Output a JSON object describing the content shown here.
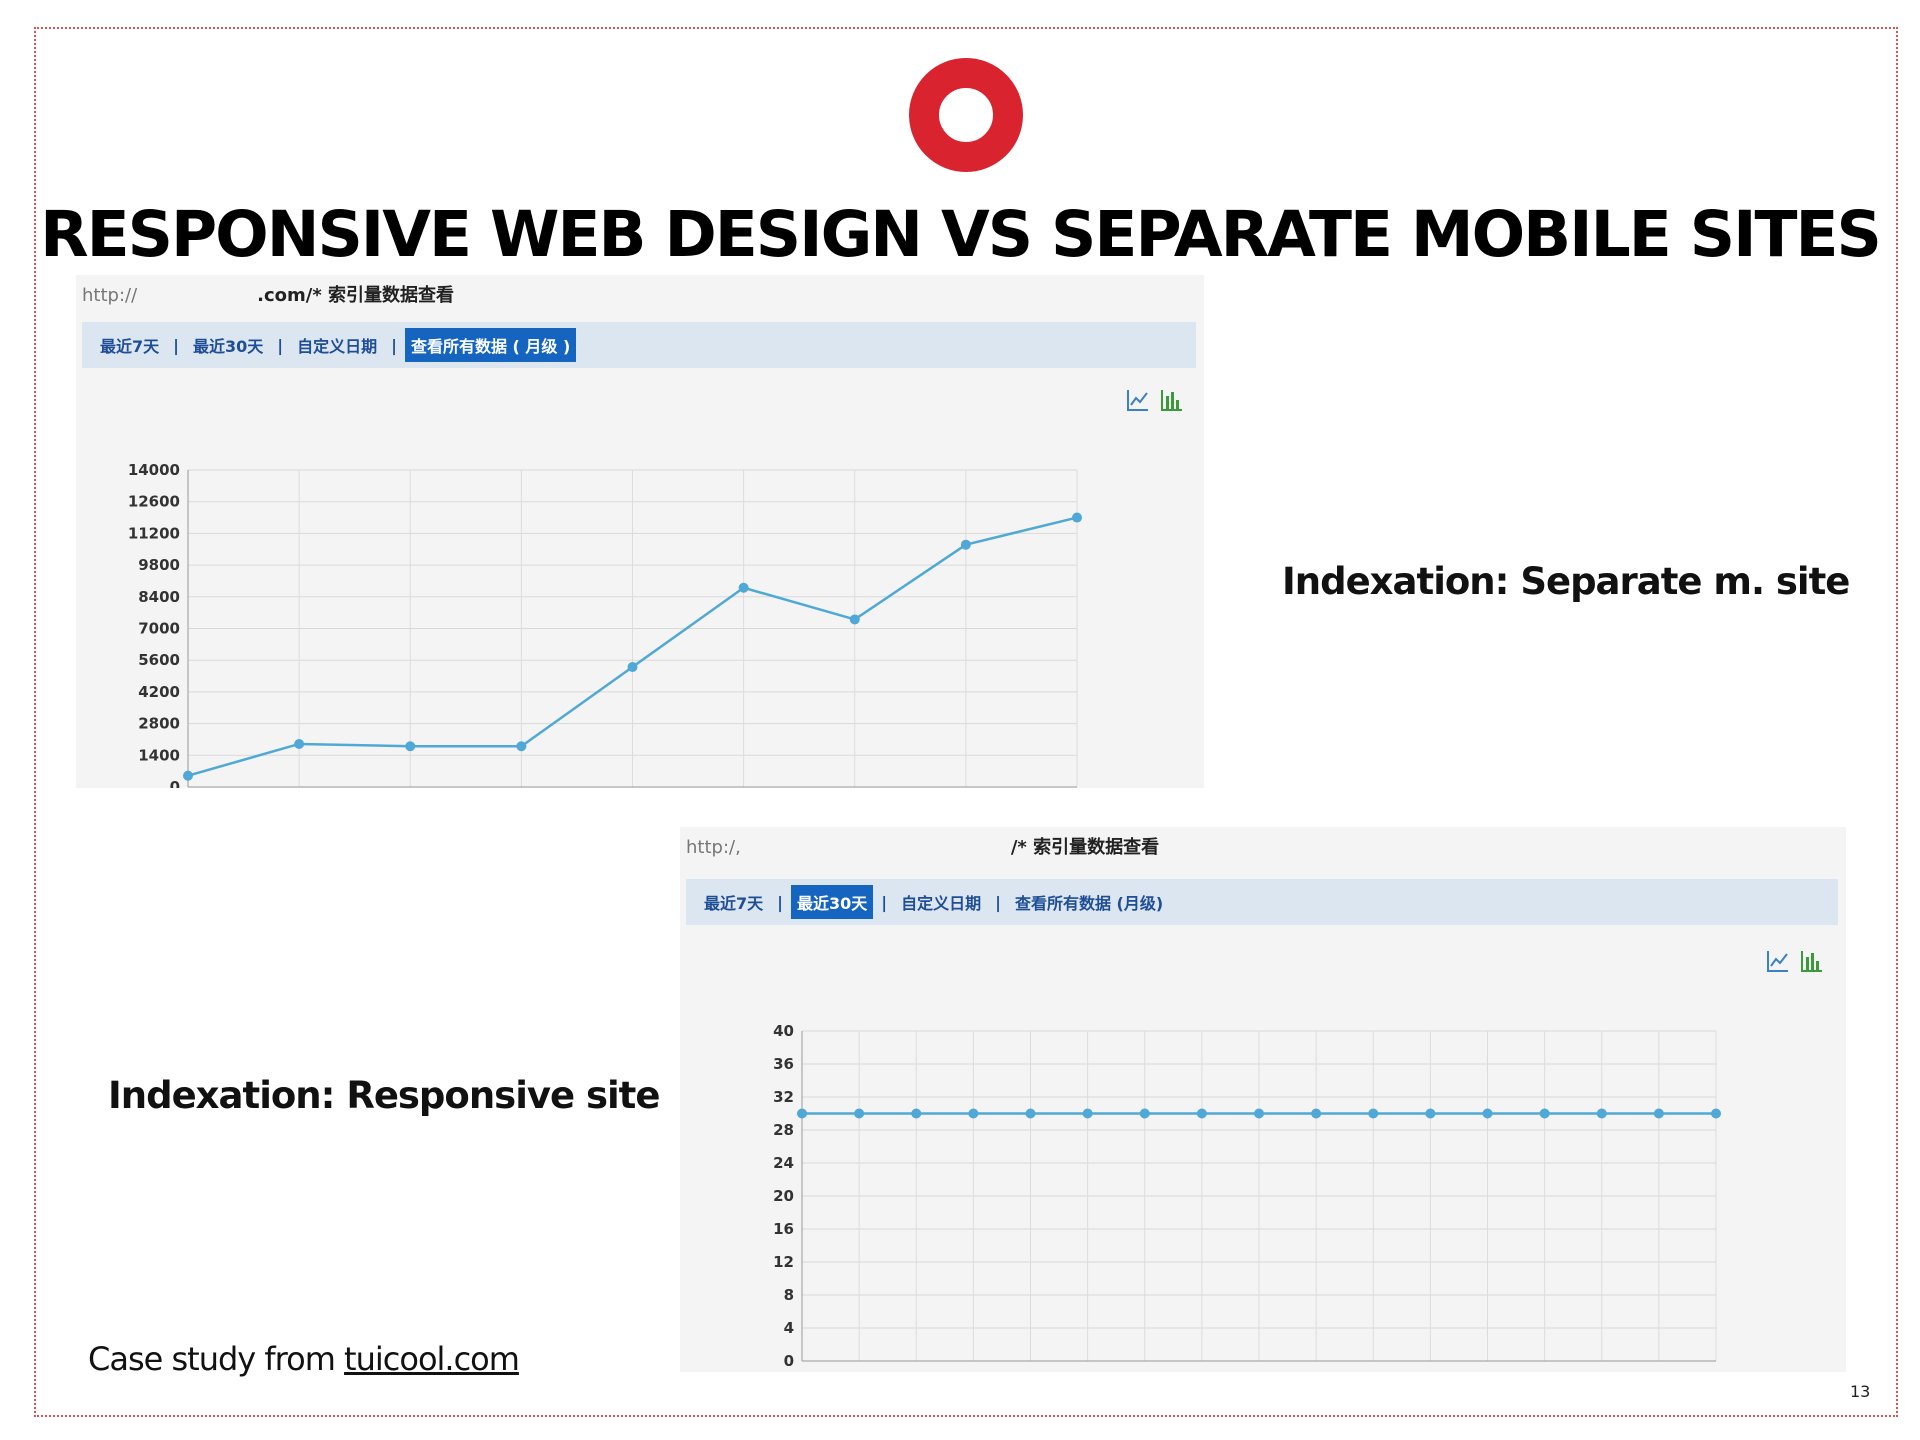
{
  "slide": {
    "title": "RESPONSIVE WEB DESIGN VS SEPARATE MOBILE SITES",
    "label_separate": "Indexation: Separate m. site",
    "label_responsive": "Indexation: Responsive site",
    "case_prefix": "Case study from ",
    "case_link": "tuicool.com",
    "page_number": "13",
    "accent_color": "#d9232e"
  },
  "panel1": {
    "url_prefix": "http://",
    "url_suffix": ".com/* 索引量数据查看",
    "tabs": [
      {
        "label": "最近7天",
        "active": false
      },
      {
        "label": "最近30天",
        "active": false
      },
      {
        "label": "自定义日期",
        "active": false
      },
      {
        "label": "查看所有数据 ( 月级 )",
        "active": true
      }
    ],
    "icons": [
      "line-chart-icon",
      "bar-chart-icon"
    ]
  },
  "panel2": {
    "url_prefix": "http:/,",
    "url_suffix": "/* 索引量数据查看",
    "tabs": [
      {
        "label": "最近7天",
        "active": false
      },
      {
        "label": "最近30天",
        "active": true
      },
      {
        "label": "自定义日期",
        "active": false
      },
      {
        "label": "查看所有数据 (月级)",
        "active": false
      }
    ],
    "icons": [
      "line-chart-icon",
      "bar-chart-icon"
    ]
  },
  "chart_data": [
    {
      "type": "line",
      "title": "",
      "xlabel": "",
      "ylabel": "",
      "yticks": [
        0,
        1400,
        2800,
        4200,
        5600,
        7000,
        8400,
        9800,
        11200,
        12600,
        14000
      ],
      "ylim": [
        0,
        14000
      ],
      "x": [
        1,
        2,
        3,
        4,
        5,
        6,
        7,
        8,
        9
      ],
      "series": [
        {
          "values": [
            500,
            1900,
            1800,
            1800,
            5300,
            8800,
            7400,
            10700,
            11900
          ],
          "color": "#4fa8d6"
        }
      ],
      "grid": true
    },
    {
      "type": "line",
      "title": "",
      "xlabel": "",
      "ylabel": "",
      "yticks": [
        0,
        4,
        8,
        12,
        16,
        20,
        24,
        28,
        32,
        36,
        40
      ],
      "ylim": [
        0,
        40
      ],
      "x": [
        1,
        2,
        3,
        4,
        5,
        6,
        7,
        8,
        9,
        10,
        11,
        12,
        13,
        14,
        15,
        16,
        17
      ],
      "series": [
        {
          "values": [
            30,
            30,
            30,
            30,
            30,
            30,
            30,
            30,
            30,
            30,
            30,
            30,
            30,
            30,
            30,
            30,
            30
          ],
          "color": "#4fa8d6"
        }
      ],
      "grid": true
    }
  ]
}
